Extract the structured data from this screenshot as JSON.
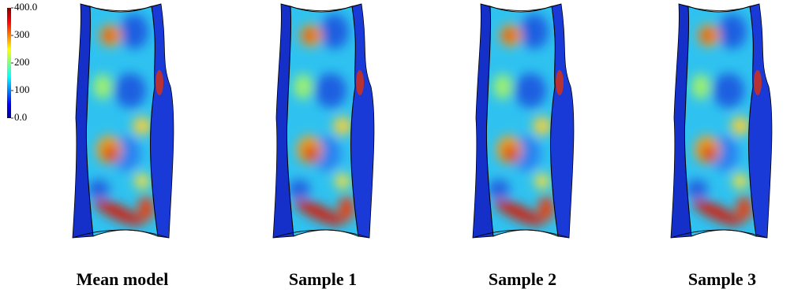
{
  "colorbar": {
    "range": [
      0,
      400
    ],
    "ticks": [
      {
        "value": 400,
        "label": "400.0"
      },
      300,
      200,
      100,
      {
        "value": 0,
        "label": "0.0"
      }
    ]
  },
  "panels": [
    {
      "label": "Mean model"
    },
    {
      "label": "Sample 1"
    },
    {
      "label": "Sample 2"
    },
    {
      "label": "Sample 3"
    }
  ]
}
